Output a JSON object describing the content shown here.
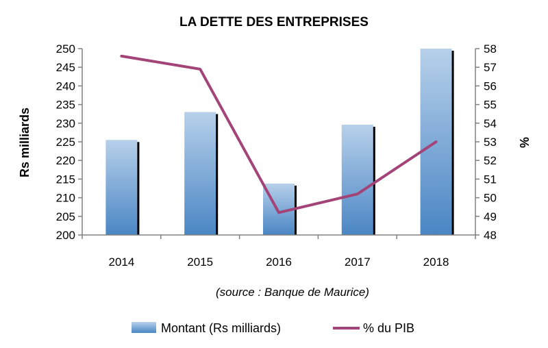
{
  "chart_data": {
    "type": "bar",
    "title": "LA DETTE DES ENTREPRISES",
    "categories": [
      "2014",
      "2015",
      "2016",
      "2017",
      "2018"
    ],
    "series": [
      {
        "name": "Montant (Rs milliards)",
        "type": "bar",
        "axis": "left",
        "values": [
          225.5,
          233,
          213.8,
          229.6,
          250
        ]
      },
      {
        "name": "% du PIB",
        "type": "line",
        "axis": "right",
        "values": [
          57.6,
          56.9,
          49.2,
          50.2,
          53
        ]
      }
    ],
    "ylabel": "Rs milliards",
    "ylim": [
      200,
      250
    ],
    "yticks": [
      200,
      205,
      210,
      215,
      220,
      225,
      230,
      235,
      240,
      245,
      250
    ],
    "y2label": "%",
    "y2lim": [
      48,
      58
    ],
    "y2ticks": [
      48,
      49,
      50,
      51,
      52,
      53,
      54,
      55,
      56,
      57,
      58
    ],
    "source": "(source : Banque de Maurice)",
    "legend_position": "bottom",
    "grid": false,
    "colors": {
      "bar_top": "#b7d0ea",
      "bar_bottom": "#4a86c4",
      "line": "#a34479",
      "axis": "#808080"
    }
  }
}
